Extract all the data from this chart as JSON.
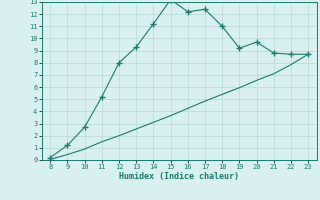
{
  "xlabel": "Humidex (Indice chaleur)",
  "x_line1": [
    8,
    9,
    10,
    11,
    12,
    13,
    14,
    15,
    16,
    17,
    18,
    19,
    20,
    21,
    22,
    23
  ],
  "y_line1": [
    0.2,
    1.2,
    2.7,
    5.2,
    8.0,
    9.3,
    11.2,
    13.2,
    12.2,
    12.4,
    11.0,
    9.2,
    9.7,
    8.8,
    8.7,
    8.7
  ],
  "x_line2": [
    8,
    9,
    10,
    11,
    12,
    13,
    14,
    15,
    16,
    17,
    18,
    19,
    20,
    21,
    22,
    23
  ],
  "y_line2": [
    0.05,
    0.45,
    0.9,
    1.5,
    2.0,
    2.55,
    3.1,
    3.65,
    4.25,
    4.85,
    5.4,
    5.95,
    6.55,
    7.1,
    7.85,
    8.7
  ],
  "line_color": "#1a7a6e",
  "bg_color": "#d9f0f0",
  "grid_color": "#b8d8d8",
  "ylim": [
    0,
    13
  ],
  "xlim": [
    7.5,
    23.5
  ],
  "yticks": [
    0,
    1,
    2,
    3,
    4,
    5,
    6,
    7,
    8,
    9,
    10,
    11,
    12,
    13
  ],
  "xticks": [
    8,
    9,
    10,
    11,
    12,
    13,
    14,
    15,
    16,
    17,
    18,
    19,
    20,
    21,
    22,
    23
  ]
}
